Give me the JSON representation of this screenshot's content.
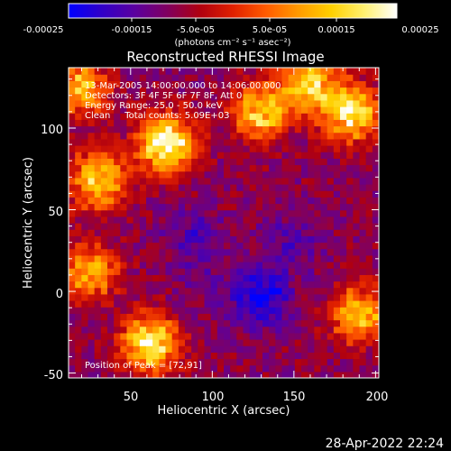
{
  "window": {
    "timestamp": "28-Apr-2022 22:24"
  },
  "colorbar": {
    "colormap": [
      "#0000ff",
      "#3000c8",
      "#5a00a0",
      "#800060",
      "#b00010",
      "#e02000",
      "#ff5a00",
      "#ff9a00",
      "#ffd000",
      "#fff070",
      "#ffffff"
    ],
    "tick_labels": [
      "-0.00025",
      "-0.00015",
      "-5.0e-05",
      "5.0e-05",
      "0.00015",
      "0.00025"
    ],
    "unit_label": "(photons cm⁻² s⁻¹ asec⁻²)",
    "range": [
      -0.00025,
      0.00025
    ]
  },
  "chart_data": {
    "type": "heatmap",
    "title": "Reconstructed RHESSI Image",
    "xlabel": "Heliocentric X (arcsec)",
    "ylabel": "Heliocentric Y (arcsec)",
    "xlim": [
      12,
      202
    ],
    "ylim": [
      -53,
      137
    ],
    "x_ticks": [
      50,
      100,
      150,
      200
    ],
    "y_ticks": [
      -50,
      0,
      50,
      100
    ],
    "x_tick_labels": [
      "50",
      "100",
      "150",
      "200"
    ],
    "y_tick_labels": [
      "-50",
      "0",
      "50",
      "100"
    ],
    "annotations": [
      "13-Mar-2005 14:00:00.000 to 14:06:00.000",
      "Detectors: 3F 4F 5F 6F 7F 8F, Att 0",
      "Energy Range: 25.0 - 50.0 keV",
      "Clean     Total counts: 5.09E+03"
    ],
    "peak_label": "Position of Peak = [72,91]",
    "peak": [
      72,
      91
    ],
    "bright_regions": [
      {
        "x": 72,
        "y": 91,
        "value": 0.00025
      },
      {
        "x": 30,
        "y": 68,
        "value": 0.00018
      },
      {
        "x": 185,
        "y": 110,
        "value": 0.0002
      },
      {
        "x": 130,
        "y": 110,
        "value": 0.00017
      },
      {
        "x": 62,
        "y": -32,
        "value": 0.00021
      },
      {
        "x": 190,
        "y": -14,
        "value": 0.00015
      },
      {
        "x": 20,
        "y": 125,
        "value": 0.00014
      },
      {
        "x": 160,
        "y": 128,
        "value": 0.00016
      },
      {
        "x": 25,
        "y": 12,
        "value": 0.00012
      }
    ],
    "dark_regions": [
      {
        "x": 130,
        "y": -3,
        "value": -0.00025
      },
      {
        "x": 88,
        "y": 35,
        "value": -0.00016
      },
      {
        "x": 150,
        "y": 30,
        "value": -0.00016
      },
      {
        "x": 95,
        "y": 5,
        "value": -0.00012
      }
    ]
  }
}
